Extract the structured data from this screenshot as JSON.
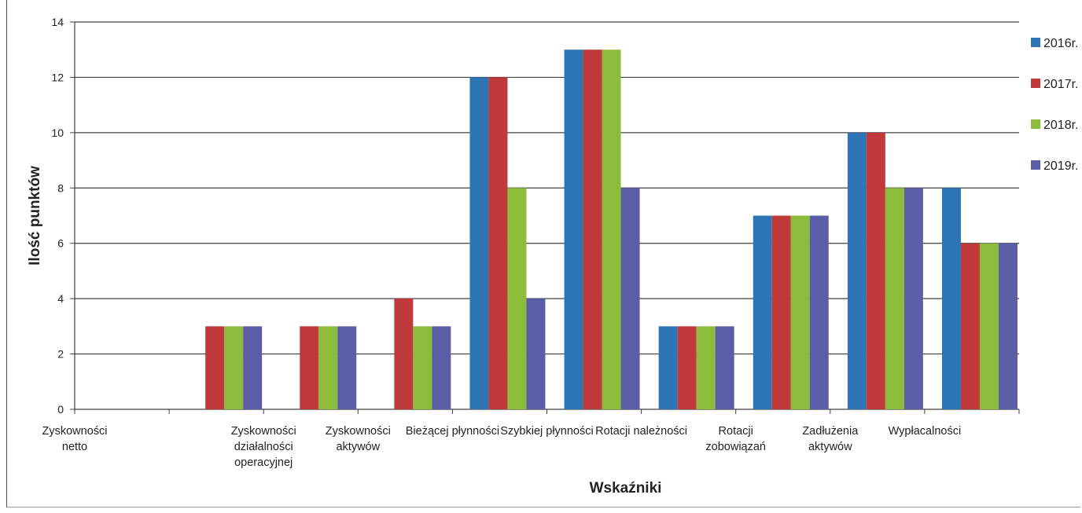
{
  "chart_data": {
    "type": "bar",
    "title": "",
    "xlabel": "Wskaźniki",
    "ylabel": "Ilość punktów",
    "ylim": [
      0,
      14
    ],
    "yticks": [
      0,
      2,
      4,
      6,
      8,
      10,
      12,
      14
    ],
    "grid": true,
    "legend_position": "right",
    "categories": [
      [
        "Zyskowności",
        "netto"
      ],
      [],
      [
        "Zyskowności",
        "działalności",
        "operacyjnej"
      ],
      [
        "Zyskowności",
        "aktywów"
      ],
      [
        "Bieżącej płynności"
      ],
      [
        "Szybkiej płynności"
      ],
      [
        "Rotacji należności"
      ],
      [
        "Rotacji",
        "zobowiązań"
      ],
      [
        "Zadłużenia",
        "aktywów"
      ],
      [
        "Wypłacalności"
      ]
    ],
    "series": [
      {
        "name": "2016r.",
        "color": "#2e75b6",
        "values": [
          0,
          0,
          0,
          0,
          12,
          13,
          3,
          7,
          10,
          8
        ]
      },
      {
        "name": "2017r.",
        "color": "#c0393b",
        "values": [
          0,
          3,
          3,
          4,
          12,
          13,
          3,
          7,
          10,
          6
        ]
      },
      {
        "name": "2018r.",
        "color": "#8dbb3a",
        "values": [
          0,
          3,
          3,
          3,
          8,
          13,
          3,
          7,
          8,
          6
        ]
      },
      {
        "name": "2019r.",
        "color": "#5b5ea6",
        "values": [
          0,
          3,
          3,
          3,
          4,
          8,
          3,
          7,
          8,
          6
        ]
      }
    ]
  }
}
